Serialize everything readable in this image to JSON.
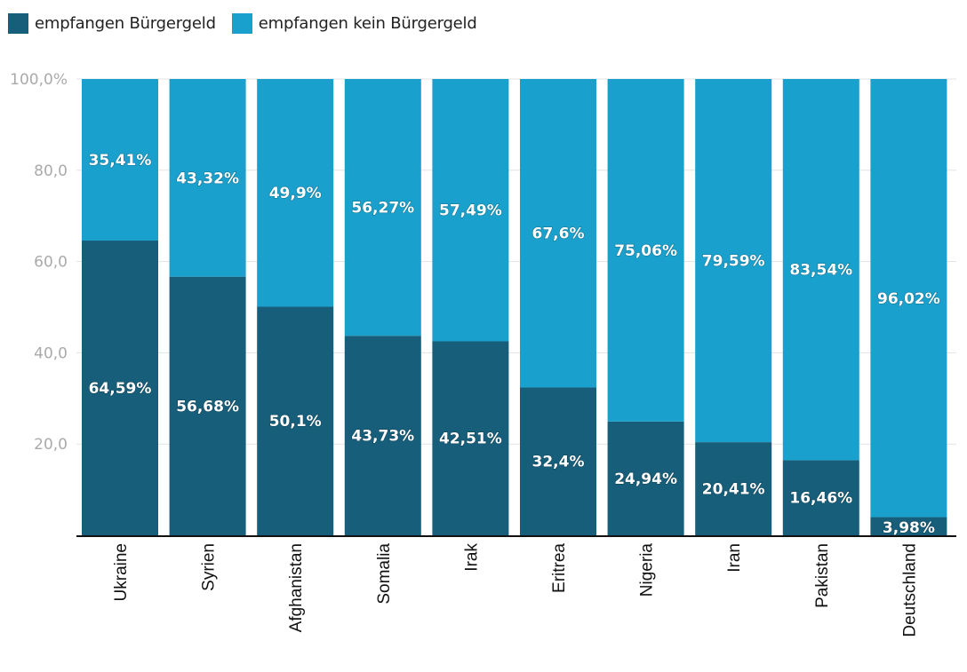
{
  "chart_data": {
    "type": "bar",
    "stacked": true,
    "title": "",
    "xlabel": "",
    "ylabel": "",
    "ylim": [
      0,
      100
    ],
    "y_ticks": [
      "20,0",
      "40,0",
      "60,0",
      "80,0",
      "100,0%"
    ],
    "y_tick_values": [
      20,
      40,
      60,
      80,
      100
    ],
    "grid": true,
    "legend_position": "top-left",
    "categories": [
      "Ukraine",
      "Syrien",
      "Afghanistan",
      "Somalia",
      "Irak",
      "Eritrea",
      "Nigeria",
      "Iran",
      "Pakistan",
      "Deutschland"
    ],
    "series": [
      {
        "name": "empfangen Bürgergeld",
        "color": "#175e7a",
        "values": [
          64.59,
          56.68,
          50.1,
          43.73,
          42.51,
          32.4,
          24.94,
          20.41,
          16.46,
          3.98
        ],
        "labels": [
          "64,59%",
          "56,68%",
          "50,1%",
          "43,73%",
          "42,51%",
          "32,4%",
          "24,94%",
          "20,41%",
          "16,46%",
          "3,98%"
        ]
      },
      {
        "name": "empfangen kein Bürgergeld",
        "color": "#1aa0cc",
        "values": [
          35.41,
          43.32,
          49.9,
          56.27,
          57.49,
          67.6,
          75.06,
          79.59,
          83.54,
          96.02
        ],
        "labels": [
          "35,41%",
          "43,32%",
          "49,9%",
          "56,27%",
          "57,49%",
          "67,6%",
          "75,06%",
          "79,59%",
          "83,54%",
          "96,02%"
        ]
      }
    ]
  }
}
